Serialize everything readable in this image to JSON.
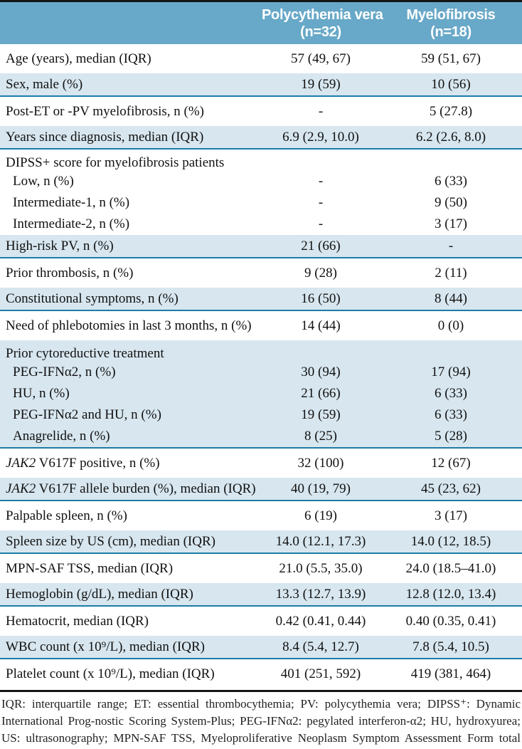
{
  "header": {
    "pv": {
      "line1": "Polycythemia vera",
      "line2": "(n=32)"
    },
    "mf": {
      "line1": "Myelofibrosis",
      "line2": "(n=18)"
    }
  },
  "colors": {
    "header_bg": "#68a8c8",
    "shaded_row_bg": "#d7e6ef",
    "rule_teal": "#1d7ca8",
    "border_black": "#151515",
    "header_text": "#ffffff",
    "body_text": "#111111"
  },
  "table": {
    "rows": [
      {
        "label": "Age (years), median (IQR)",
        "pv": "57 (49, 67)",
        "mf": "59 (51, 67)",
        "shaded": false
      },
      {
        "label": "Sex, male (%)",
        "pv": "19 (59)",
        "mf": "10 (56)",
        "shaded": true
      },
      {
        "label": "Post-ET or -PV myelofibrosis, n (%)",
        "pv": "-",
        "mf": "5 (27.8)",
        "shaded": false
      },
      {
        "label": "Years since diagnosis, median (IQR)",
        "pv": "6.9 (2.9, 10.0)",
        "mf": "6.2 (2.6, 8.0)",
        "shaded": true
      },
      {
        "label": "DIPSS+ score for myelofibrosis patients",
        "pv": "",
        "mf": "",
        "shaded": false,
        "group": true
      },
      {
        "label": "Low, n (%)",
        "pv": "-",
        "mf": "6 (33)",
        "shaded": false,
        "sub": true,
        "indent": 1
      },
      {
        "label": "Intermediate-1, n (%)",
        "pv": "-",
        "mf": "9 (50)",
        "shaded": false,
        "sub": true,
        "indent": 1
      },
      {
        "label": "Intermediate-2, n (%)",
        "pv": "-",
        "mf": "3 (17)",
        "shaded": false,
        "sub": true,
        "indent": 1
      },
      {
        "label": "High-risk PV, n (%)",
        "pv": "21 (66)",
        "mf": "-",
        "shaded": true
      },
      {
        "label": "Prior thrombosis, n (%)",
        "pv": "9 (28)",
        "mf": "2 (11)",
        "shaded": false
      },
      {
        "label": "Constitutional symptoms, n (%)",
        "pv": "16 (50)",
        "mf": "8 (44)",
        "shaded": true
      },
      {
        "label": "Need of phlebotomies in last 3 months, n (%)",
        "pv": "14 (44)",
        "mf": "0 (0)",
        "shaded": false
      },
      {
        "label": "Prior cytoreductive treatment",
        "pv": "",
        "mf": "",
        "shaded": true,
        "group": true
      },
      {
        "label": "PEG-IFNα2, n (%)",
        "pv": "30 (94)",
        "mf": "17 (94)",
        "shaded": true,
        "sub": true,
        "indent": 1
      },
      {
        "label": "HU, n (%)",
        "pv": "21 (66)",
        "mf": "6 (33)",
        "shaded": true,
        "sub": true,
        "indent": 1
      },
      {
        "label": "PEG-IFNα2 and HU, n (%)",
        "pv": "19 (59)",
        "mf": "6 (33)",
        "shaded": true,
        "sub": true,
        "indent": 1
      },
      {
        "label": "Anagrelide, n (%)",
        "pv": "8 (25)",
        "mf": "5 (28)",
        "shaded": true,
        "sub": true,
        "indent": 1
      },
      {
        "label_italic": "JAK2",
        "label": " V617F positive, n (%)",
        "pv": "32 (100)",
        "mf": "12 (67)",
        "shaded": false
      },
      {
        "label_italic": "JAK2",
        "label": " V617F allele burden (%), median (IQR)",
        "pv": "40 (19, 79)",
        "mf": "45 (23, 62)",
        "shaded": true
      },
      {
        "label": "Palpable spleen, n (%)",
        "pv": "6 (19)",
        "mf": "3 (17)",
        "shaded": false
      },
      {
        "label": "Spleen size by US (cm), median (IQR)",
        "pv": "14.0 (12.1, 17.3)",
        "mf": "14.0 (12, 18.5)",
        "shaded": true
      },
      {
        "label": "MPN-SAF TSS, median (IQR)",
        "pv": "21.0 (5.5, 35.0)",
        "mf": "24.0 (18.5–41.0)",
        "shaded": false
      },
      {
        "label": "Hemoglobin (g/dL), median (IQR)",
        "pv": "13.3 (12.7, 13.9)",
        "mf": "12.8 (12.0, 13.4)",
        "shaded": true
      },
      {
        "label": "Hematocrit, median (IQR)",
        "pv": "0.42 (0.41, 0.44)",
        "mf": "0.40 (0.35, 0.41)",
        "shaded": false
      },
      {
        "label": "WBC count (x 10⁹/L), median (IQR)",
        "pv": "8.4 (5.4, 12.7)",
        "mf": "7.8 (5.4, 10.5)",
        "shaded": true
      },
      {
        "label": "Platelet count (x 10⁹/L), median (IQR)",
        "pv": "401 (251, 592)",
        "mf": "419 (381, 464)",
        "shaded": false
      }
    ]
  },
  "footnote": "IQR: interquartile range; ET: essential thrombocythemia; PV: polycythemia vera; DIPSS⁺: Dynamic International Prog-nostic Scoring System-Plus; PEG-IFNα2: pegylated interferon-α2; HU, hydroxyurea; US: ultrasonography; MPN-SAF TSS, Myeloproliferative Neoplasm Symptom Assessment Form total symptom score;WBC: white blood cell."
}
